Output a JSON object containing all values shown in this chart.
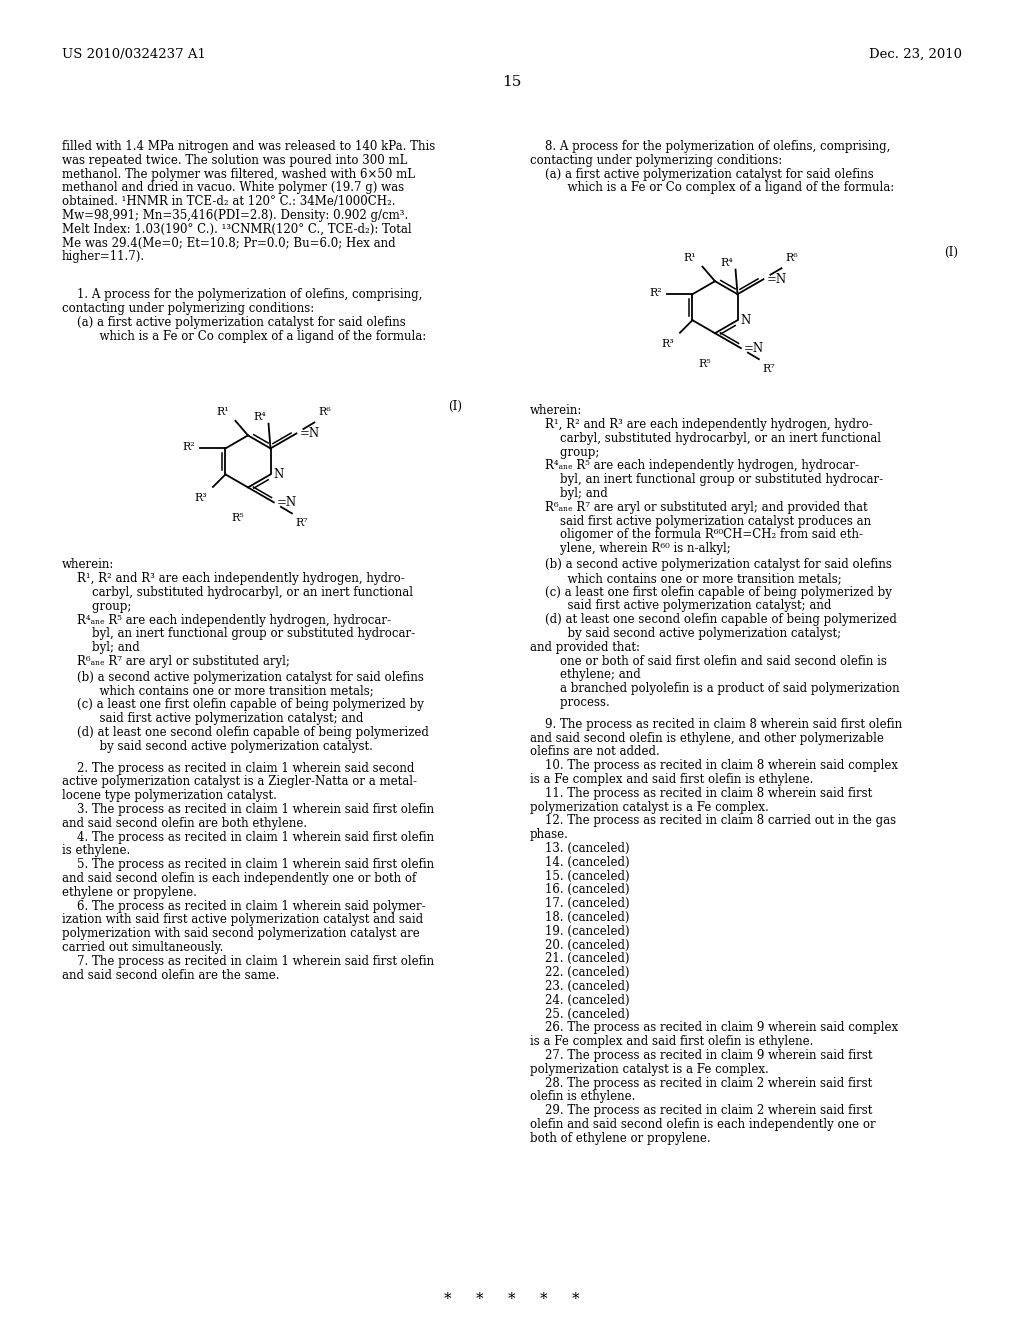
{
  "header_left": "US 2010/0324237 A1",
  "header_right": "Dec. 23, 2010",
  "page_number": "15",
  "bg_color": "#ffffff",
  "text_color": "#000000",
  "left_col_intro": [
    "filled with 1.4 MPa nitrogen and was released to 140 kPa. This",
    "was repeated twice. The solution was poured into 300 mL",
    "methanol. The polymer was filtered, washed with 6×50 mL",
    "methanol and dried in vacuo. White polymer (19.7 g) was",
    "obtained. ¹HNMR in TCE-d₂ at 120° C.: 34Me/1000CH₂.",
    "Mw=98,991; Mn=35,416(PDI=2.8). Density: 0.902 g/cm³.",
    "Melt Index: 1.03(190° C.). ¹³CNMR(120° C., TCE-d₂): Total",
    "Me was 29.4(Me=0; Et=10.8; Pr=0.0; Bu=6.0; Hex and",
    "higher=11.7)."
  ],
  "claim1_line1": "    1. A process for the polymerization of olefins, comprising,",
  "claim1_body": [
    "contacting under polymerizing conditions:",
    "    (a) a first active polymerization catalyst for said olefins",
    "          which is a Fe or Co complex of a ligand of the formula:"
  ],
  "left_wherein": [
    "wherein:",
    "    R¹, R² and R³ are each independently hydrogen, hydro-",
    "        carbyl, substituted hydrocarbyl, or an inert functional",
    "        group;",
    "    R⁴ₐₙₑ R⁵ are each independently hydrogen, hydrocar-",
    "        byl, an inert functional group or substituted hydrocar-",
    "        byl; and",
    "    R⁶ₐₙₑ R⁷ are aryl or substituted aryl;"
  ],
  "left_bd": [
    "    (b) a second active polymerization catalyst for said olefins",
    "          which contains one or more transition metals;",
    "    (c) a least one first olefin capable of being polymerized by",
    "          said first active polymerization catalyst; and",
    "    (d) at least one second olefin capable of being polymerized",
    "          by said second active polymerization catalyst."
  ],
  "claims_2_7": [
    "    2. The process as recited in claim 1 wherein said second",
    "active polymerization catalyst is a Ziegler-Natta or a metal-",
    "locene type polymerization catalyst.",
    "    3. The process as recited in claim 1 wherein said first olefin",
    "and said second olefin are both ethylene.",
    "    4. The process as recited in claim 1 wherein said first olefin",
    "is ethylene.",
    "    5. The process as recited in claim 1 wherein said first olefin",
    "and said second olefin is each independently one or both of",
    "ethylene or propylene.",
    "    6. The process as recited in claim 1 wherein said polymer-",
    "ization with said first active polymerization catalyst and said",
    "polymerization with said second polymerization catalyst are",
    "carried out simultaneously.",
    "    7. The process as recited in claim 1 wherein said first olefin",
    "and said second olefin are the same."
  ],
  "claim8_lines": [
    "    8. A process for the polymerization of olefins, comprising,",
    "contacting under polymerizing conditions:",
    "    (a) a first active polymerization catalyst for said olefins",
    "          which is a Fe or Co complex of a ligand of the formula:"
  ],
  "right_wherein": [
    "wherein:",
    "    R¹, R² and R³ are each independently hydrogen, hydro-",
    "        carbyl, substituted hydrocarbyl, or an inert functional",
    "        group;",
    "    R⁴ₐₙₑ R⁵ are each independently hydrogen, hydrocar-",
    "        byl, an inert functional group or substituted hydrocar-",
    "        byl; and",
    "    R⁶ₐₙₑ R⁷ are aryl or substituted aryl; and provided that",
    "        said first active polymerization catalyst produces an",
    "        oligomer of the formula R⁶⁰CH=CH₂ from said eth-",
    "        ylene, wherein R⁶⁰ is n-alkyl;"
  ],
  "right_bd": [
    "    (b) a second active polymerization catalyst for said olefins",
    "          which contains one or more transition metals;",
    "    (c) a least one first olefin capable of being polymerized by",
    "          said first active polymerization catalyst; and",
    "    (d) at least one second olefin capable of being polymerized",
    "          by said second active polymerization catalyst;",
    "and provided that:",
    "        one or both of said first olefin and said second olefin is",
    "        ethylene; and",
    "        a branched polyolefin is a product of said polymerization",
    "        process."
  ],
  "claims_9_29": [
    "    9. The process as recited in claim 8 wherein said first olefin",
    "and said second olefin is ethylene, and other polymerizable",
    "olefins are not added.",
    "    10. The process as recited in claim 8 wherein said complex",
    "is a Fe complex and said first olefin is ethylene.",
    "    11. The process as recited in claim 8 wherein said first",
    "polymerization catalyst is a Fe complex.",
    "    12. The process as recited in claim 8 carried out in the gas",
    "phase.",
    "    13. (canceled)",
    "    14. (canceled)",
    "    15. (canceled)",
    "    16. (canceled)",
    "    17. (canceled)",
    "    18. (canceled)",
    "    19. (canceled)",
    "    20. (canceled)",
    "    21. (canceled)",
    "    22. (canceled)",
    "    23. (canceled)",
    "    24. (canceled)",
    "    25. (canceled)",
    "    26. The process as recited in claim 9 wherein said complex",
    "is a Fe complex and said first olefin is ethylene.",
    "    27. The process as recited in claim 9 wherein said first",
    "polymerization catalyst is a Fe complex.",
    "    28. The process as recited in claim 2 wherein said first",
    "olefin is ethylene.",
    "    29. The process as recited in claim 2 wherein said first",
    "olefin and said second olefin is each independently one or",
    "both of ethylene or propylene."
  ],
  "footer": "*     *     *     *     *"
}
